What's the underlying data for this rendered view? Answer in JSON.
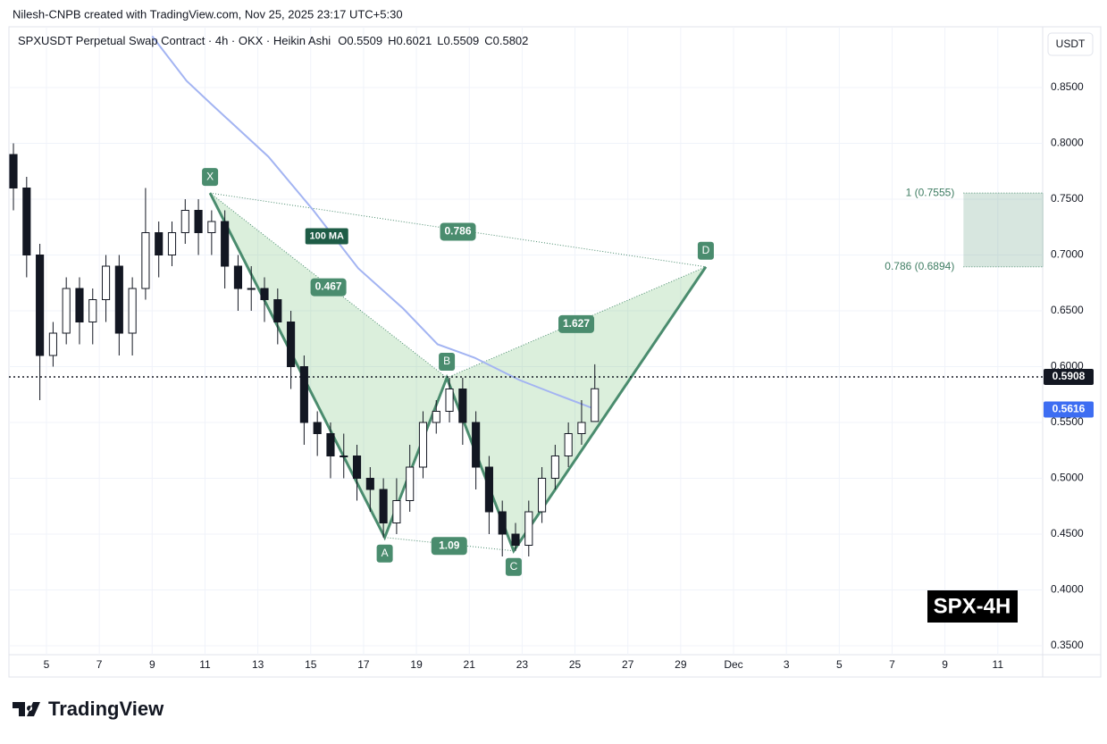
{
  "header": {
    "attribution": "Nilesh-CNPB created with TradingView.com, Nov 25, 2025 23:17 UTC+5:30",
    "symbol": "SPXUSDT Perpetual Swap Contract · 4h · OKX · Heikin Ashi",
    "ohlc": [
      {
        "label": "O",
        "value": 0.5509
      },
      {
        "label": "H",
        "value": 0.6021
      },
      {
        "label": "L",
        "value": 0.5509
      },
      {
        "label": "C",
        "value": 0.5802
      }
    ]
  },
  "chart_data": {
    "type": "candlestick",
    "currency": "USDT",
    "badge": "SPX-4H",
    "x": [
      3.75,
      4.25,
      4.75,
      5.25,
      5.75,
      6.25,
      6.75,
      7.25,
      7.75,
      8.25,
      8.75,
      9.25,
      9.75,
      10.25,
      10.75,
      11.25,
      11.75,
      12.25,
      12.75,
      13.25,
      13.75,
      14.25,
      14.75,
      15.25,
      15.75,
      16.25,
      16.75,
      17.25,
      17.75,
      18.25,
      18.75,
      19.25,
      19.75,
      20.25,
      20.75,
      21.25,
      21.75,
      22.25,
      22.75,
      23.25,
      23.75,
      24.25,
      24.75,
      25.25,
      25.75
    ],
    "open": [
      0.79,
      0.76,
      0.7,
      0.61,
      0.63,
      0.67,
      0.64,
      0.66,
      0.69,
      0.63,
      0.67,
      0.72,
      0.7,
      0.72,
      0.74,
      0.72,
      0.73,
      0.69,
      0.67,
      0.67,
      0.66,
      0.64,
      0.6,
      0.55,
      0.54,
      0.52,
      0.52,
      0.5,
      0.49,
      0.46,
      0.48,
      0.51,
      0.55,
      0.56,
      0.58,
      0.55,
      0.51,
      0.47,
      0.45,
      0.44,
      0.47,
      0.5,
      0.52,
      0.54,
      0.5509
    ],
    "high": [
      0.8,
      0.77,
      0.71,
      0.64,
      0.68,
      0.68,
      0.67,
      0.7,
      0.7,
      0.68,
      0.76,
      0.73,
      0.73,
      0.75,
      0.75,
      0.74,
      0.74,
      0.7,
      0.69,
      0.68,
      0.67,
      0.65,
      0.61,
      0.56,
      0.55,
      0.54,
      0.53,
      0.51,
      0.5,
      0.5,
      0.53,
      0.56,
      0.57,
      0.59,
      0.59,
      0.56,
      0.52,
      0.48,
      0.46,
      0.48,
      0.51,
      0.53,
      0.55,
      0.57,
      0.6021
    ],
    "low": [
      0.74,
      0.68,
      0.57,
      0.6,
      0.62,
      0.62,
      0.62,
      0.64,
      0.61,
      0.61,
      0.66,
      0.68,
      0.69,
      0.71,
      0.7,
      0.7,
      0.67,
      0.65,
      0.65,
      0.64,
      0.62,
      0.58,
      0.53,
      0.52,
      0.5,
      0.5,
      0.48,
      0.47,
      0.447,
      0.45,
      0.47,
      0.5,
      0.54,
      0.55,
      0.53,
      0.49,
      0.45,
      0.43,
      0.435,
      0.43,
      0.46,
      0.49,
      0.51,
      0.53,
      0.5509
    ],
    "close": [
      0.76,
      0.7,
      0.61,
      0.63,
      0.67,
      0.64,
      0.66,
      0.69,
      0.63,
      0.67,
      0.72,
      0.7,
      0.72,
      0.74,
      0.72,
      0.73,
      0.69,
      0.67,
      0.67,
      0.66,
      0.64,
      0.6,
      0.55,
      0.54,
      0.52,
      0.52,
      0.5,
      0.49,
      0.46,
      0.48,
      0.51,
      0.55,
      0.56,
      0.58,
      0.55,
      0.51,
      0.47,
      0.45,
      0.44,
      0.47,
      0.5,
      0.52,
      0.54,
      0.55,
      0.5802
    ],
    "ma": {
      "name": "100 MA",
      "color": "#a3b4f2",
      "x": [
        9,
        10.3,
        11.2,
        13.4,
        15.1,
        16.8,
        18.5,
        19.8,
        21.2,
        22.9,
        24.2,
        25.8
      ],
      "values": [
        0.896,
        0.856,
        0.836,
        0.788,
        0.74,
        0.688,
        0.652,
        0.62,
        0.608,
        0.588,
        0.576,
        0.5616
      ]
    },
    "pattern": {
      "color": "#4a8c6e",
      "points": [
        {
          "label": "X",
          "x": 11.19,
          "y": 0.7555
        },
        {
          "label": "A",
          "x": 17.8,
          "y": 0.447
        },
        {
          "label": "B",
          "x": 20.15,
          "y": 0.59
        },
        {
          "label": "C",
          "x": 22.68,
          "y": 0.435
        },
        {
          "label": "D",
          "x": 29.95,
          "y": 0.6894
        }
      ],
      "ratios": [
        0.467,
        0.786,
        1.09,
        1.627
      ]
    },
    "zone": {
      "x": [
        39.7,
        42.73
      ],
      "levels": [
        {
          "value": 0.7555,
          "label": "1 (0.7555)"
        },
        {
          "value": 0.6894,
          "label": "0.786 (0.6894)"
        }
      ]
    },
    "last_price": 0.5908,
    "ma_last": 0.5616,
    "xlim": [
      3.58,
      42.63
    ],
    "ylim": [
      0.342,
      0.9004
    ],
    "xticks": [
      5,
      7,
      9,
      11,
      13,
      15,
      17,
      19,
      21,
      23,
      25,
      27,
      29,
      {
        "value": 31,
        "label": "Dec"
      },
      {
        "value": 33,
        "label": "3"
      },
      {
        "value": 35,
        "label": "5"
      },
      {
        "value": 37,
        "label": "7"
      },
      {
        "value": 39,
        "label": "9"
      },
      {
        "value": 41,
        "label": "11"
      }
    ],
    "yticks": [
      {
        "value": 0.35,
        "label": "0.3500"
      },
      {
        "value": 0.4,
        "label": "0.4000"
      },
      {
        "value": 0.45,
        "label": "0.4500"
      },
      {
        "value": 0.5,
        "label": "0.5000"
      },
      {
        "value": 0.55,
        "label": "0.5500"
      },
      {
        "value": 0.6,
        "label": "0.6000"
      },
      {
        "value": 0.65,
        "label": "0.6500"
      },
      {
        "value": 0.7,
        "label": "0.7000"
      },
      {
        "value": 0.75,
        "label": "0.7500"
      },
      {
        "value": 0.8,
        "label": "0.8000"
      },
      {
        "value": 0.85,
        "label": "0.8500"
      }
    ]
  },
  "footer": {
    "logo": "TradingView"
  }
}
